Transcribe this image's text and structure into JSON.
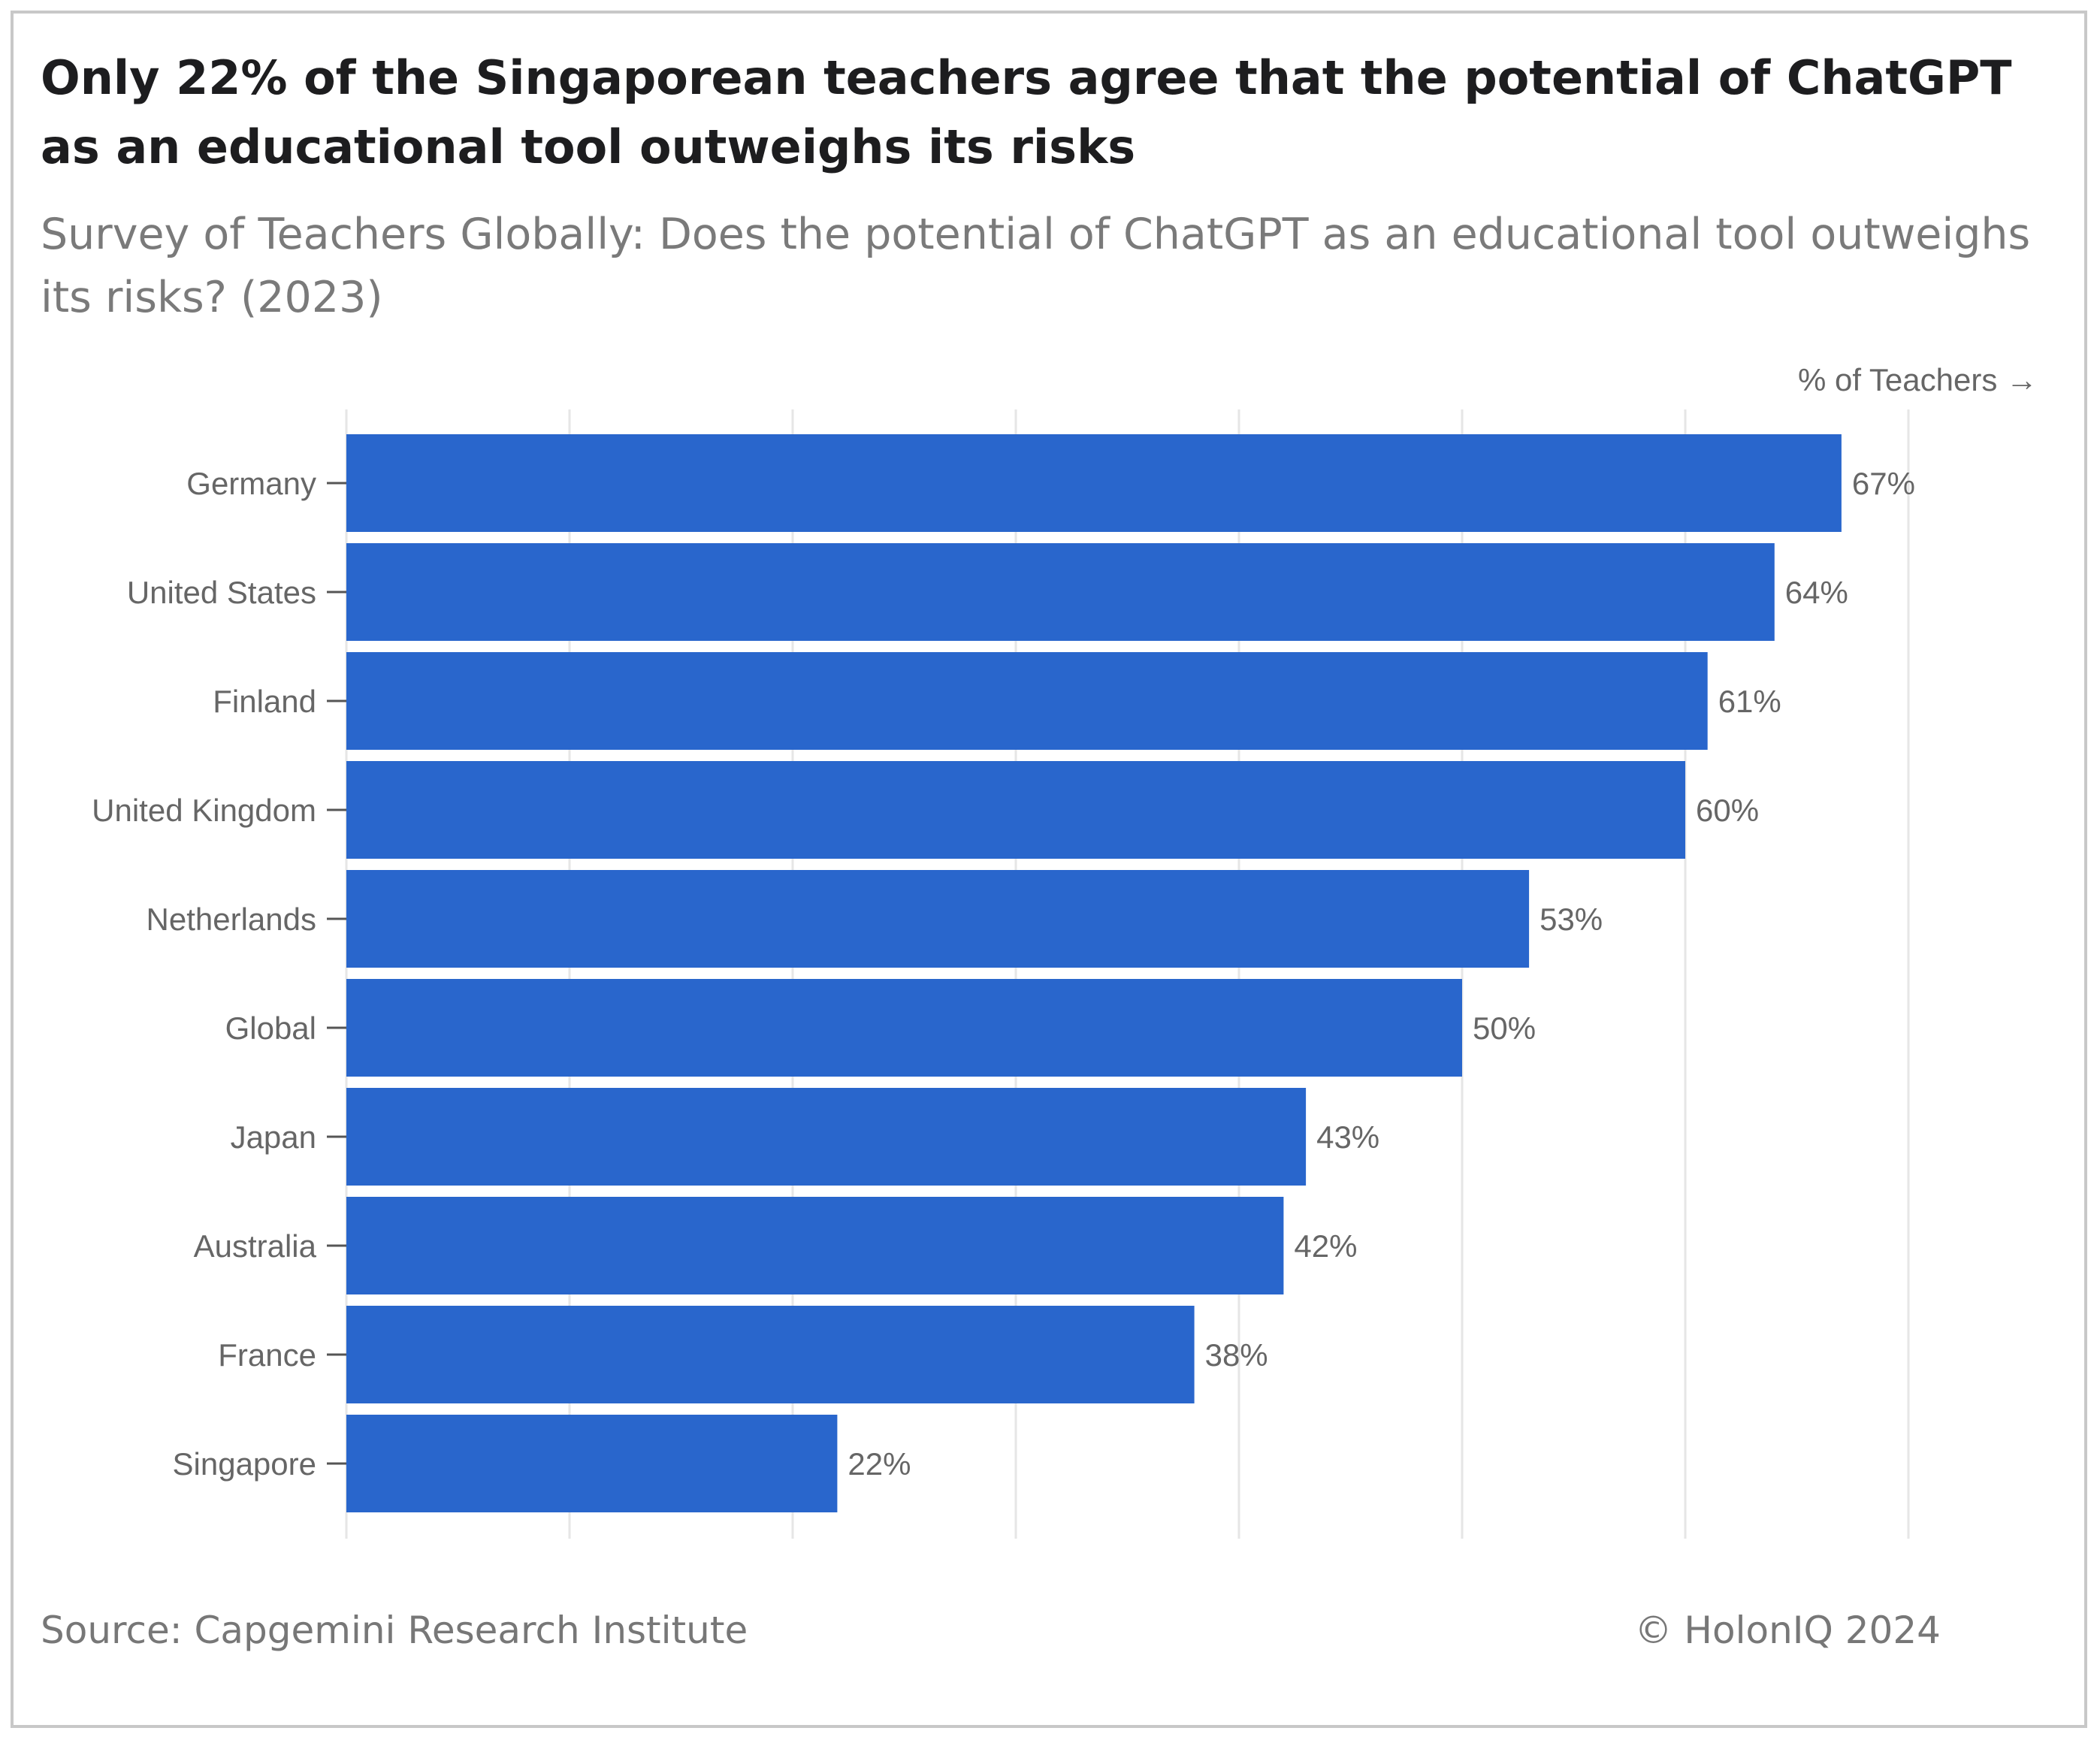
{
  "title": "Only 22% of the Singaporean teachers agree that the potential of ChatGPT as an educational tool outweighs its risks",
  "subtitle": "Survey of Teachers Globally: Does the potential of ChatGPT as an educational tool outweighs its risks? (2023)",
  "source": "Source: Capgemini Research Institute",
  "copyright": "© HolonIQ 2024",
  "colors": {
    "bar": "#2966cc",
    "grid": "#e6e6e6",
    "text": "#666666"
  },
  "chart_data": {
    "type": "bar",
    "orientation": "horizontal",
    "xlabel": "% of Teachers →",
    "categories": [
      "Germany",
      "United States",
      "Finland",
      "United Kingdom",
      "Netherlands",
      "Global",
      "Japan",
      "Australia",
      "France",
      "Singapore"
    ],
    "values": [
      67,
      64,
      61,
      60,
      53,
      50,
      43,
      42,
      38,
      22
    ],
    "value_labels": [
      "67%",
      "64%",
      "61%",
      "60%",
      "53%",
      "50%",
      "43%",
      "42%",
      "38%",
      "22%"
    ],
    "xlim": [
      0,
      70
    ],
    "grid": true,
    "legend": "none"
  }
}
